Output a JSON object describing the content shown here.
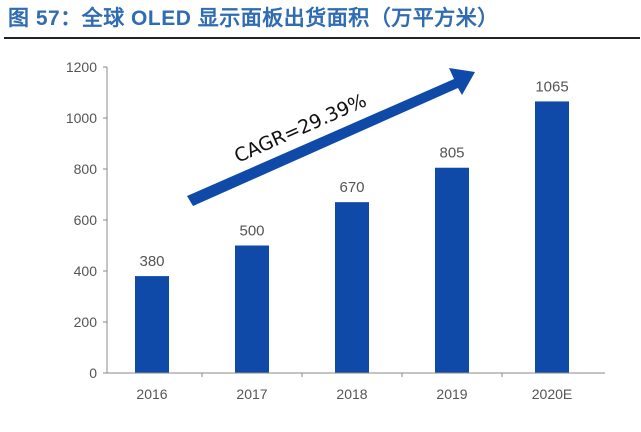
{
  "chart_data": {
    "type": "bar",
    "title": "图 57：全球 OLED 显示面板出货面积（万平方米）",
    "categories": [
      "2016",
      "2017",
      "2018",
      "2019",
      "2020E"
    ],
    "values": [
      380,
      500,
      670,
      805,
      1065
    ],
    "data_labels": [
      "380",
      "500",
      "670",
      "805",
      "1065"
    ],
    "ylim": [
      0,
      1200
    ],
    "yticks": [
      "0",
      "200",
      "400",
      "600",
      "800",
      "1000",
      "1200"
    ],
    "grid": false,
    "bar_color": "#0f4aa8",
    "title_color": "#2f6cb3",
    "annotation": "CAGR=29.39%",
    "annotation_arrow": "up-right"
  }
}
